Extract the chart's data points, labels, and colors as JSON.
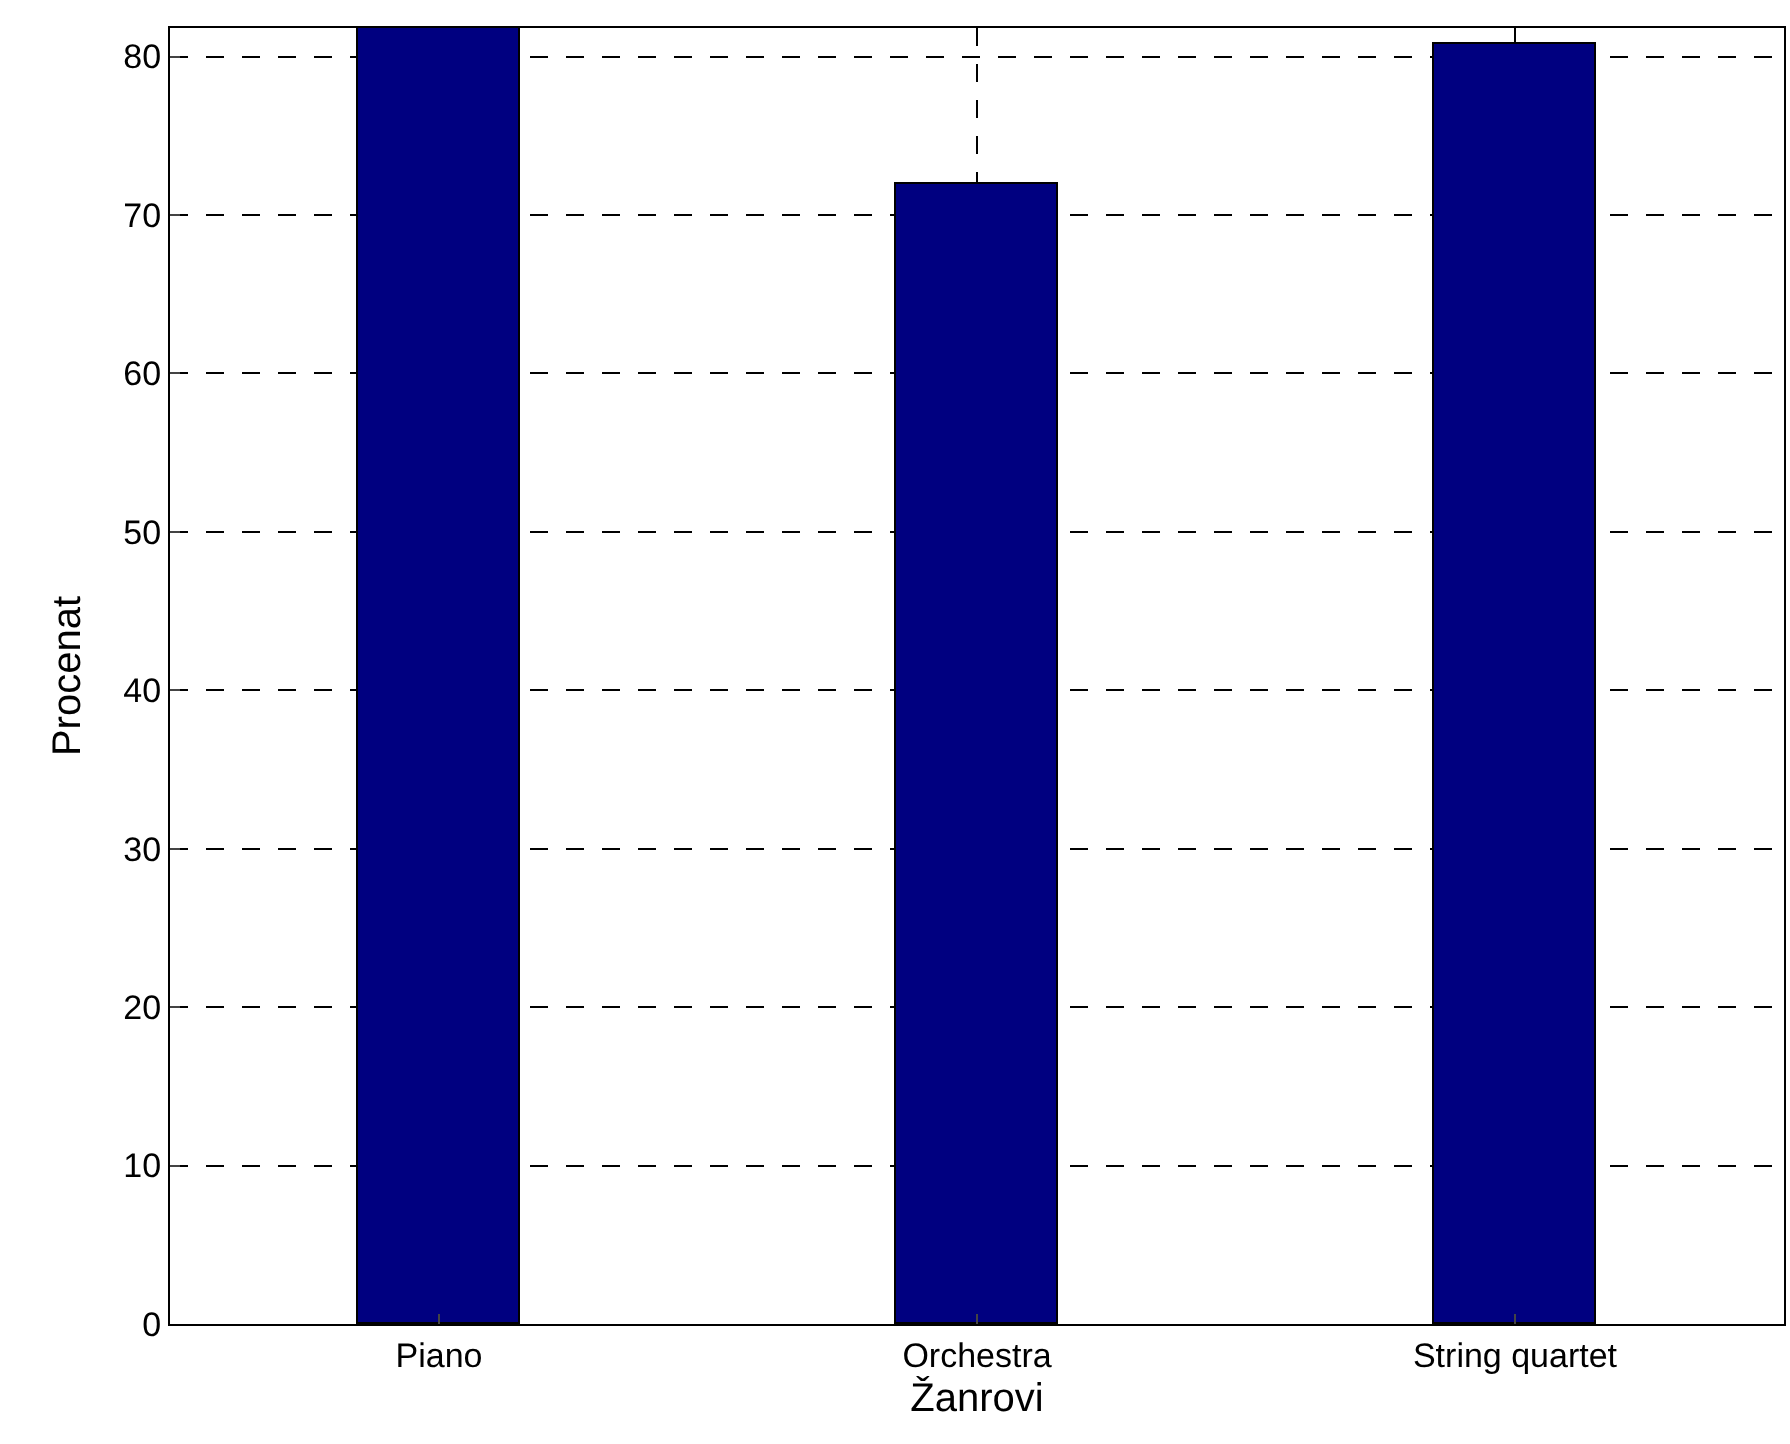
{
  "chart_data": {
    "type": "bar",
    "xlabel": "Žanrovi",
    "ylabel": "Procenat",
    "categories": [
      "Piano",
      "Orchestra",
      "String quartet"
    ],
    "values": [
      81.8,
      71.9,
      80.8
    ],
    "color": "#000080",
    "ylim": [
      0,
      81.8
    ],
    "yticks": [
      0,
      10,
      20,
      30,
      40,
      50,
      60,
      70,
      80
    ],
    "grid": true
  }
}
